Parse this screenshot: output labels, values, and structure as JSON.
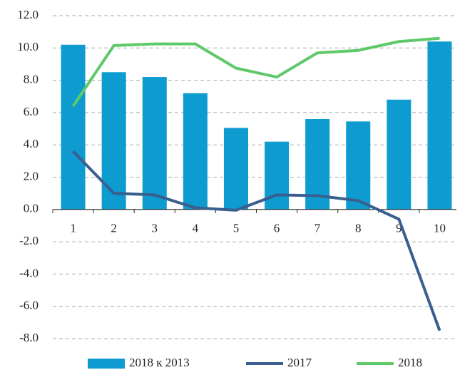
{
  "chart_data": {
    "type": "bar_line",
    "categories": [
      "1",
      "2",
      "3",
      "4",
      "5",
      "6",
      "7",
      "8",
      "9",
      "10"
    ],
    "series": [
      {
        "name": "2018 к 2013",
        "type": "bar",
        "color": "#0d9bd0",
        "values": [
          10.2,
          8.5,
          8.2,
          7.2,
          5.05,
          4.2,
          5.6,
          5.45,
          6.8,
          10.4
        ]
      },
      {
        "name": "2017",
        "type": "line",
        "color": "#3a5f8f",
        "values": [
          3.6,
          1.0,
          0.9,
          0.1,
          -0.05,
          0.9,
          0.85,
          0.55,
          -0.6,
          -7.5
        ]
      },
      {
        "name": "2018",
        "type": "line",
        "color": "#5fc96a",
        "values": [
          6.4,
          10.15,
          10.25,
          10.25,
          8.75,
          8.2,
          9.7,
          9.85,
          10.4,
          10.6
        ]
      }
    ],
    "ylim": [
      -8,
      12
    ],
    "yticks": [
      {
        "value": -8,
        "label": "-8.0"
      },
      {
        "value": -6,
        "label": "-6.0"
      },
      {
        "value": -4,
        "label": "-4.0"
      },
      {
        "value": -2,
        "label": "-2.0"
      },
      {
        "value": 0,
        "label": "0.0"
      },
      {
        "value": 2,
        "label": "2.0"
      },
      {
        "value": 4,
        "label": "4.0"
      },
      {
        "value": 6,
        "label": "6.0"
      },
      {
        "value": 8,
        "label": "8.0"
      },
      {
        "value": 10,
        "label": "10.0"
      },
      {
        "value": 12,
        "label": "12.0"
      }
    ],
    "grid": true,
    "legend": "bottom"
  }
}
